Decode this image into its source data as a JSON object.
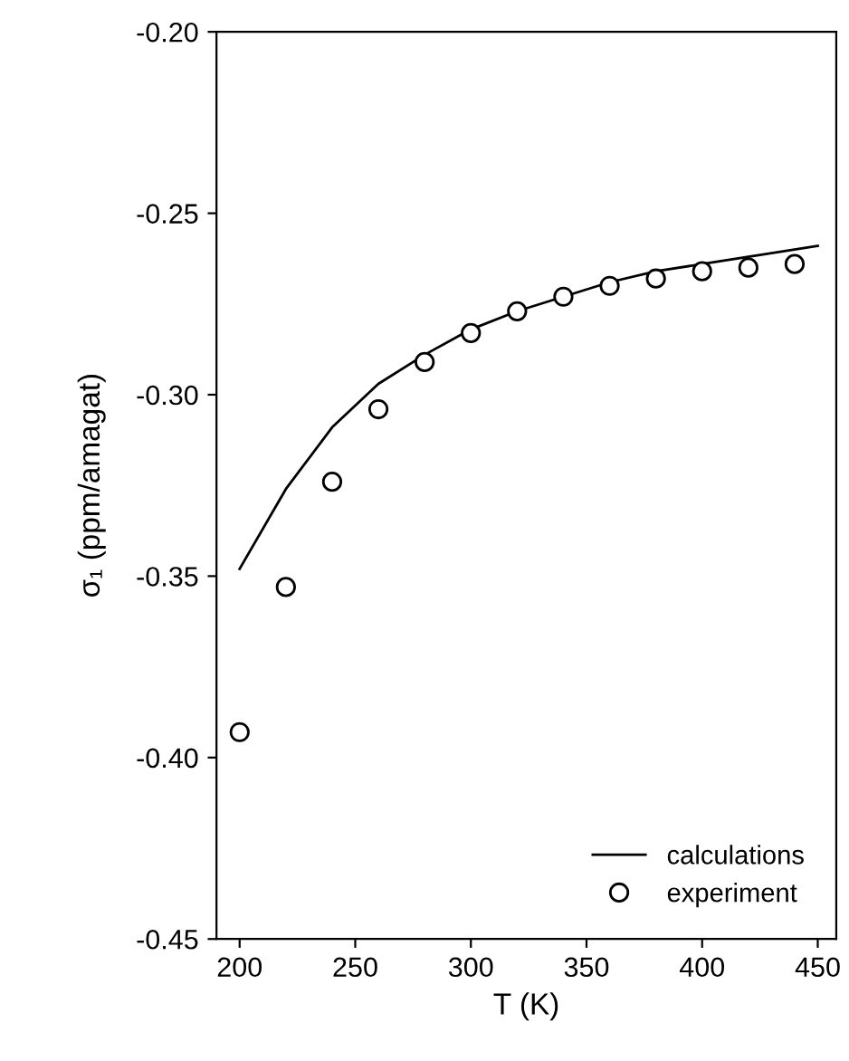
{
  "chart_data": {
    "type": "line",
    "xlabel": "T (K)",
    "ylabel": "σ₁ (ppm/amagat)",
    "xlim": [
      190,
      458
    ],
    "xticks": [
      200,
      250,
      300,
      350,
      400,
      450
    ],
    "ylim": [
      -0.45,
      -0.2
    ],
    "yticks": [
      {
        "value": -0.45,
        "label": "-0.45"
      },
      {
        "value": -0.4,
        "label": "-0.40"
      },
      {
        "value": -0.35,
        "label": "-0.35"
      },
      {
        "value": -0.3,
        "label": "-0.30"
      },
      {
        "value": -0.25,
        "label": "-0.25"
      },
      {
        "value": -0.2,
        "label": "-0.20"
      }
    ],
    "grid": false,
    "legend": "bottom right",
    "series": [
      {
        "name": "calculations",
        "color": "#000000",
        "marker": "none",
        "line_style": "solid",
        "x": [
          200,
          220,
          240,
          260,
          280,
          300,
          320,
          340,
          360,
          380,
          400,
          420,
          450
        ],
        "values": [
          -0.348,
          -0.326,
          -0.309,
          -0.297,
          -0.289,
          -0.282,
          -0.277,
          -0.273,
          -0.269,
          -0.266,
          -0.264,
          -0.262,
          -0.259
        ]
      },
      {
        "name": "experiment",
        "type": "scatter",
        "color": "#000000",
        "marker": "circle",
        "x": [
          200,
          220,
          240,
          260,
          280,
          300,
          320,
          340,
          360,
          380,
          400,
          420,
          440
        ],
        "values": [
          -0.393,
          -0.353,
          -0.324,
          -0.304,
          -0.291,
          -0.283,
          -0.277,
          -0.273,
          -0.27,
          -0.268,
          -0.266,
          -0.265,
          -0.264
        ]
      }
    ]
  }
}
